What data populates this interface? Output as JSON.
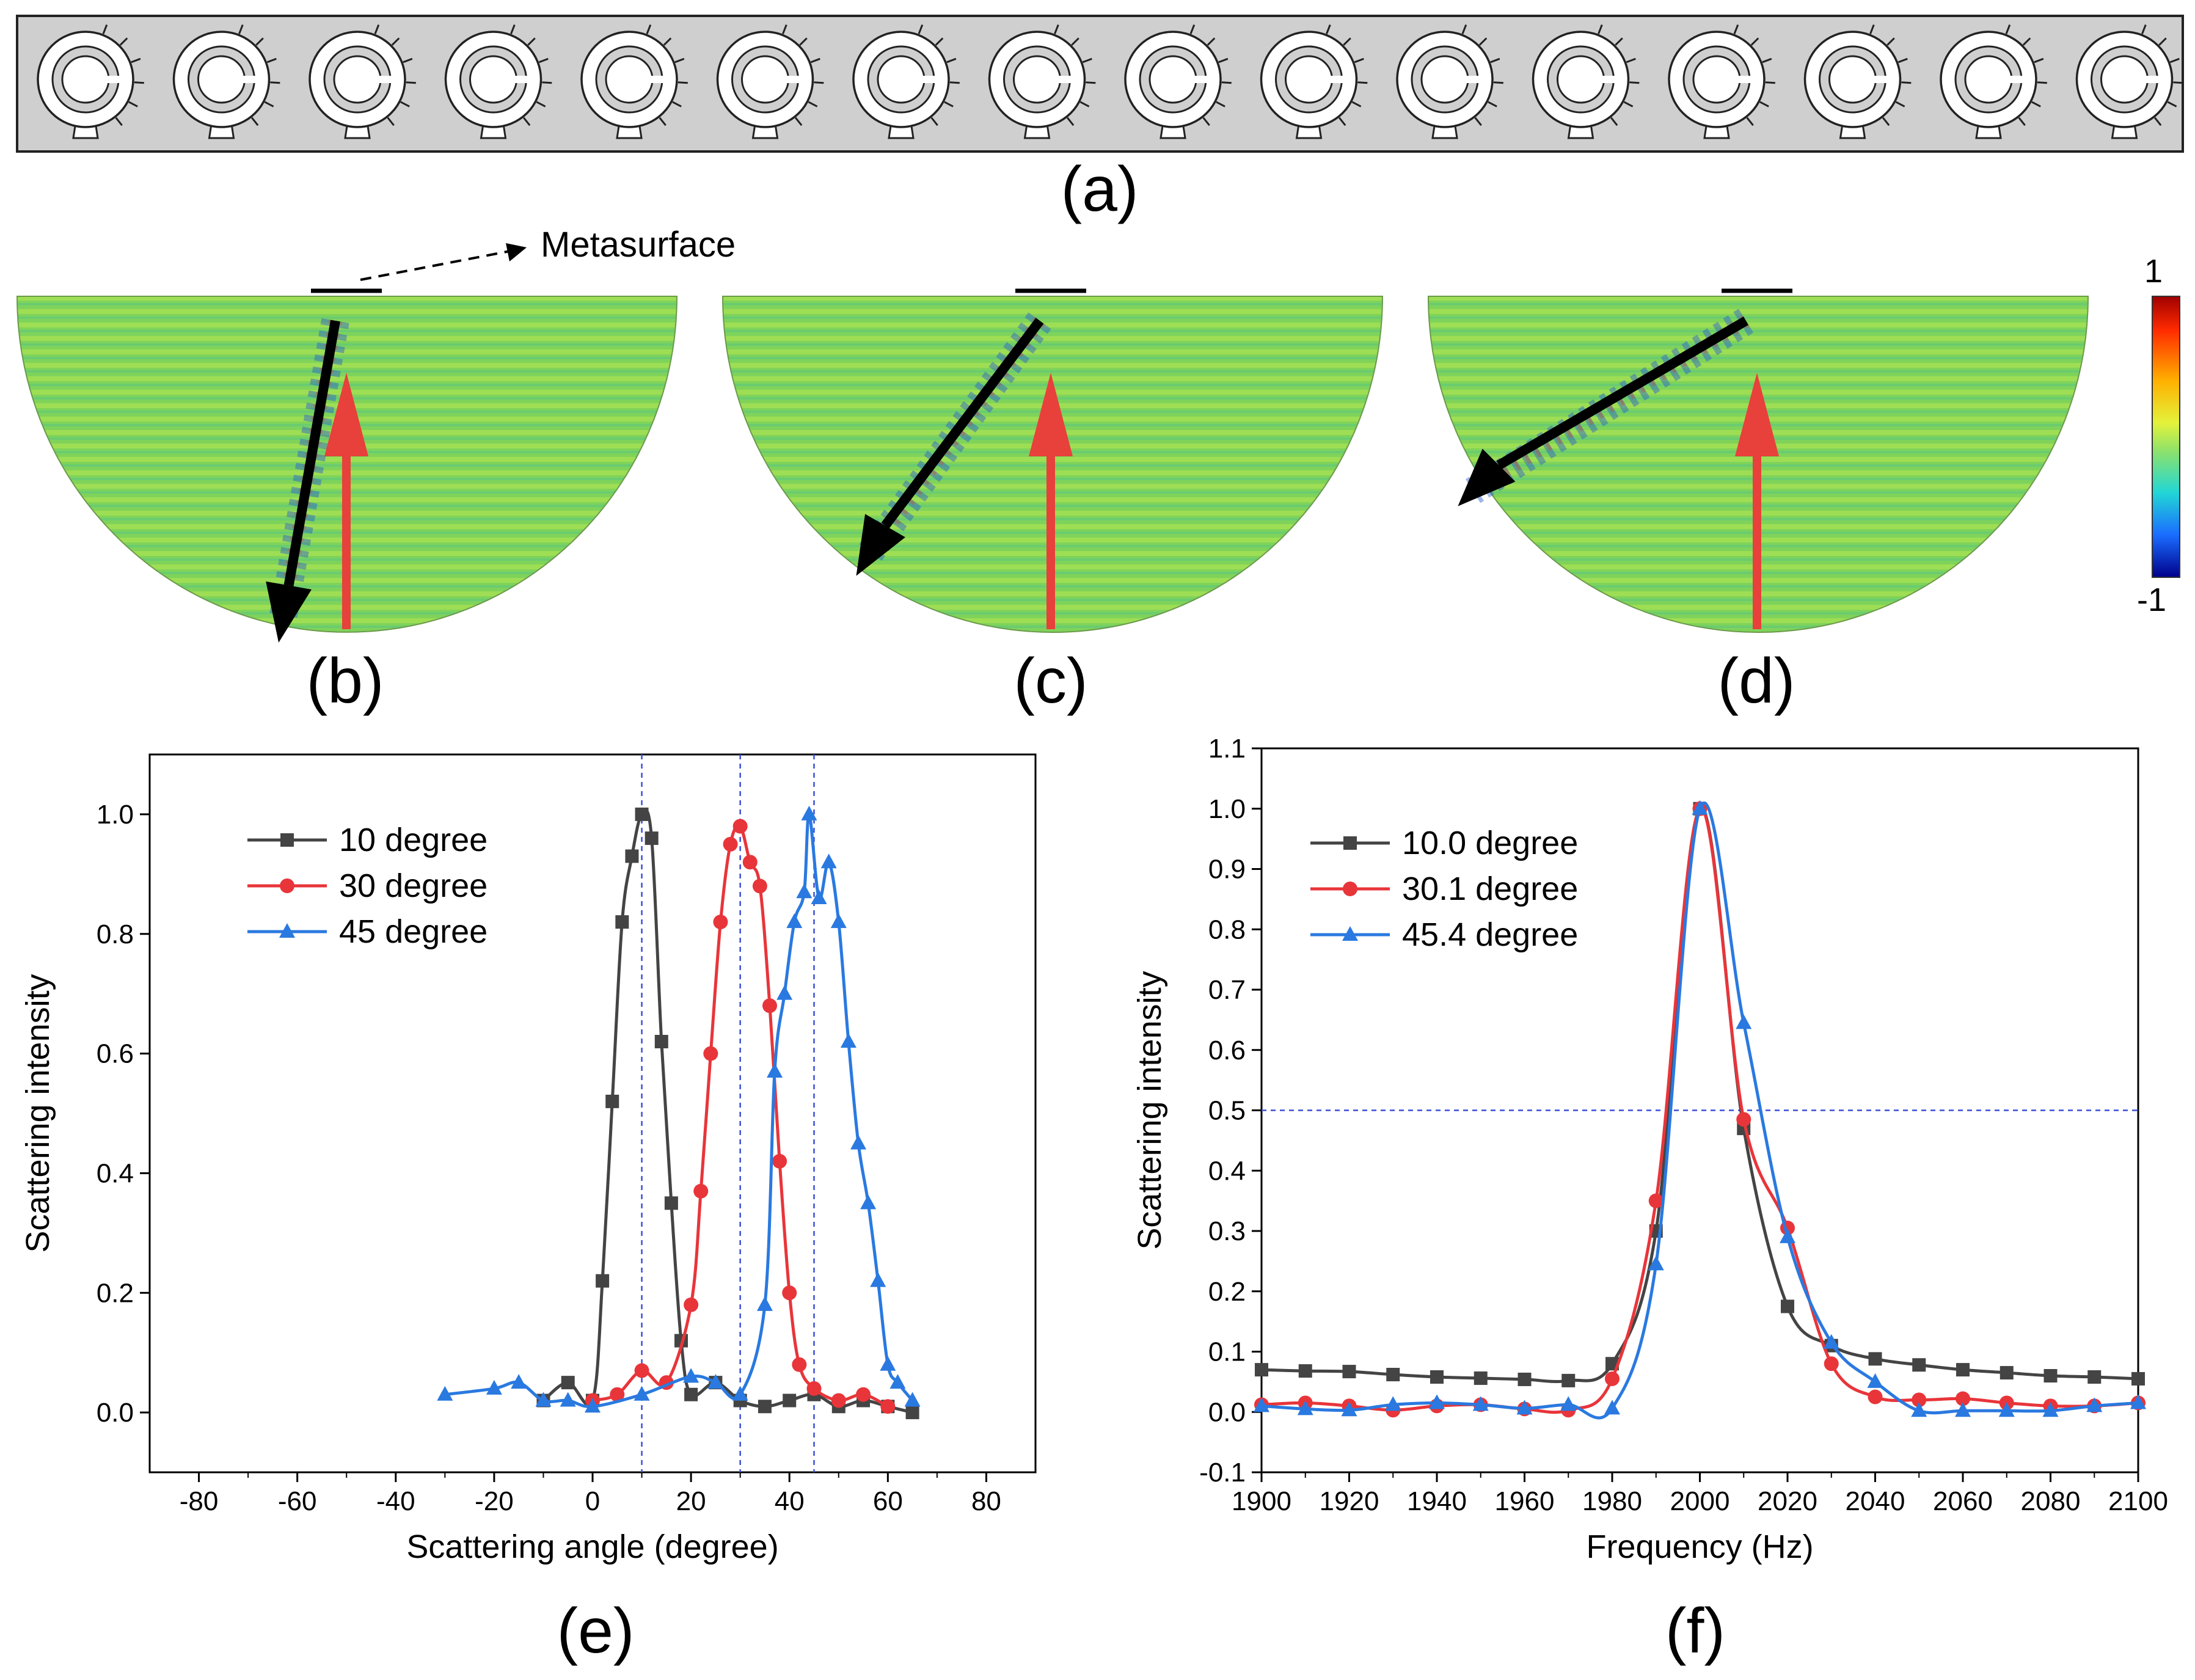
{
  "figure": {
    "panel_labels": {
      "a": "(a)",
      "b": "(b)",
      "c": "(c)",
      "d": "(d)",
      "e": "(e)",
      "f": "(f)"
    },
    "metasurface_label": "Metasurface",
    "colorbar": {
      "max_label": "1",
      "min_label": "-1"
    },
    "unit_cell_count": 16,
    "field_panels": [
      {
        "name": "b",
        "reflection_angle_deg": 10
      },
      {
        "name": "c",
        "reflection_angle_deg": 30
      },
      {
        "name": "d",
        "reflection_angle_deg": 45
      }
    ],
    "colors": {
      "series_black": "#444444",
      "series_red": "#e8353a",
      "series_blue": "#2a79e0",
      "field_green": "#7fd35a",
      "incident_arrow": "#e8403a",
      "slab": "#cfcfcf"
    }
  },
  "chart_data": [
    {
      "type": "line",
      "panel": "e",
      "xlabel": "Scattering angle (degree)",
      "ylabel": "Scattering intensity",
      "xlim": [
        -90,
        90
      ],
      "ylim": [
        -0.1,
        1.1
      ],
      "xticks": [
        "-80",
        "-60",
        "-40",
        "-20",
        "0",
        "20",
        "40",
        "60",
        "80"
      ],
      "yticks": [
        "0.0",
        "0.2",
        "0.4",
        "0.6",
        "0.8",
        "1.0"
      ],
      "ref_lines_x": [
        10,
        30,
        45
      ],
      "series": [
        {
          "name": "10 degree",
          "marker": "square",
          "x": [
            -10,
            -5,
            0,
            2,
            4,
            6,
            8,
            10,
            12,
            14,
            16,
            18,
            20,
            25,
            30,
            35,
            40,
            45,
            50,
            55,
            60,
            65
          ],
          "y": [
            0.02,
            0.05,
            0.02,
            0.22,
            0.52,
            0.82,
            0.93,
            1.0,
            0.96,
            0.62,
            0.35,
            0.12,
            0.03,
            0.05,
            0.02,
            0.01,
            0.02,
            0.03,
            0.01,
            0.02,
            0.01,
            0.0
          ]
        },
        {
          "name": "30 degree",
          "marker": "circle",
          "x": [
            0,
            5,
            10,
            15,
            20,
            22,
            24,
            26,
            28,
            30,
            32,
            34,
            36,
            38,
            40,
            42,
            45,
            50,
            55,
            60
          ],
          "y": [
            0.02,
            0.03,
            0.07,
            0.05,
            0.18,
            0.37,
            0.6,
            0.82,
            0.95,
            0.98,
            0.92,
            0.88,
            0.68,
            0.42,
            0.2,
            0.08,
            0.04,
            0.02,
            0.03,
            0.01
          ]
        },
        {
          "name": "45 degree",
          "marker": "triangle",
          "x": [
            -30,
            -20,
            -15,
            -10,
            -5,
            0,
            10,
            20,
            25,
            30,
            35,
            37,
            39,
            41,
            43,
            44,
            46,
            48,
            50,
            52,
            54,
            56,
            58,
            60,
            62,
            65
          ],
          "y": [
            0.03,
            0.04,
            0.05,
            0.02,
            0.02,
            0.01,
            0.03,
            0.06,
            0.05,
            0.03,
            0.18,
            0.57,
            0.7,
            0.82,
            0.87,
            1.0,
            0.86,
            0.92,
            0.82,
            0.62,
            0.45,
            0.35,
            0.22,
            0.08,
            0.05,
            0.02
          ]
        }
      ]
    },
    {
      "type": "line",
      "panel": "f",
      "xlabel": "Frequency (Hz)",
      "ylabel": "Scattering intensity",
      "xlim": [
        1900,
        2100
      ],
      "ylim": [
        -0.1,
        1.1
      ],
      "xticks": [
        "1900",
        "1920",
        "1940",
        "1960",
        "1980",
        "2000",
        "2020",
        "2040",
        "2060",
        "2080",
        "2100"
      ],
      "yticks": [
        "-0.1",
        "0.0",
        "0.1",
        "0.2",
        "0.3",
        "0.4",
        "0.5",
        "0.6",
        "0.7",
        "0.8",
        "0.9",
        "1.0",
        "1.1"
      ],
      "ref_line_y": 0.5,
      "series": [
        {
          "name": "10.0 degree",
          "marker": "square",
          "x": [
            1900,
            1910,
            1920,
            1930,
            1940,
            1950,
            1960,
            1970,
            1980,
            1990,
            2000,
            2010,
            2020,
            2030,
            2040,
            2050,
            2060,
            2070,
            2080,
            2090,
            2100
          ],
          "y": [
            0.07,
            0.068,
            0.067,
            0.062,
            0.058,
            0.056,
            0.054,
            0.052,
            0.08,
            0.3,
            1.0,
            0.47,
            0.175,
            0.11,
            0.088,
            0.078,
            0.07,
            0.065,
            0.06,
            0.058,
            0.055
          ]
        },
        {
          "name": "30.1 degree",
          "marker": "circle",
          "x": [
            1900,
            1910,
            1920,
            1930,
            1940,
            1950,
            1960,
            1970,
            1980,
            1990,
            2000,
            2010,
            2020,
            2030,
            2040,
            2050,
            2060,
            2070,
            2080,
            2090,
            2100
          ],
          "y": [
            0.012,
            0.015,
            0.01,
            0.003,
            0.01,
            0.012,
            0.005,
            0.003,
            0.055,
            0.35,
            1.0,
            0.485,
            0.305,
            0.08,
            0.025,
            0.02,
            0.022,
            0.015,
            0.01,
            0.01,
            0.015
          ]
        },
        {
          "name": "45.4 degree",
          "marker": "triangle",
          "x": [
            1900,
            1910,
            1920,
            1930,
            1940,
            1950,
            1960,
            1970,
            1980,
            1990,
            2000,
            2010,
            2020,
            2030,
            2040,
            2050,
            2060,
            2070,
            2080,
            2090,
            2100
          ],
          "y": [
            0.01,
            0.005,
            0.003,
            0.012,
            0.015,
            0.012,
            0.006,
            0.012,
            0.006,
            0.245,
            1.0,
            0.645,
            0.29,
            0.115,
            0.05,
            0.002,
            0.002,
            0.002,
            0.002,
            0.01,
            0.015
          ]
        }
      ]
    }
  ]
}
